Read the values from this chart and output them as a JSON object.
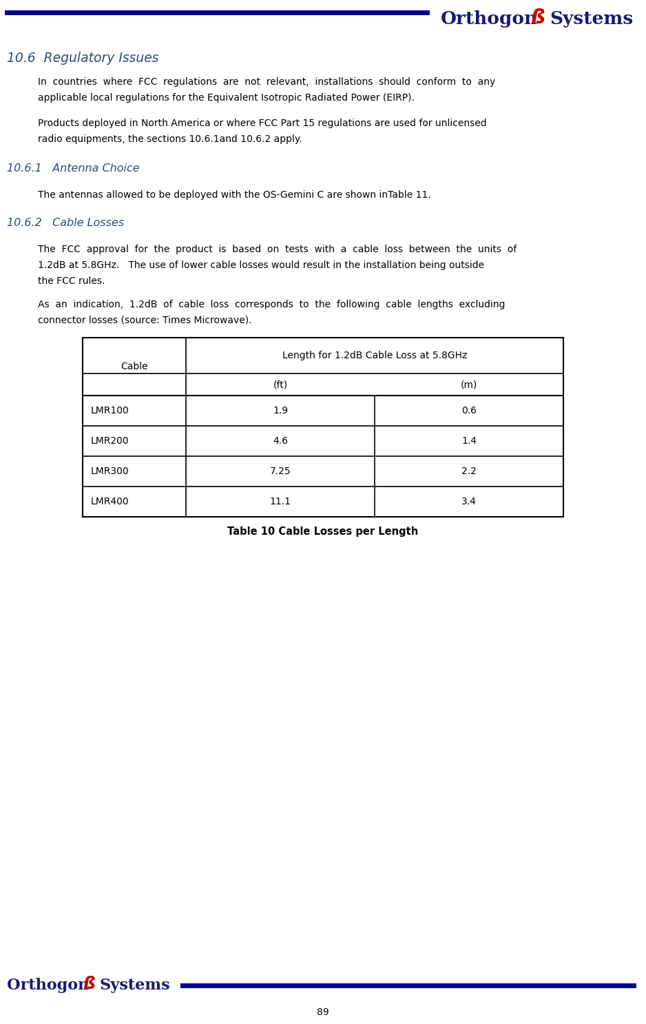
{
  "page_number": "89",
  "header_line_color": "#00008B",
  "section_title": "10.6  Regulatory Issues",
  "section_title_color": "#2E4A7A",
  "subsection1_title": "10.6.1   Antenna Choice",
  "subsection1_title_color": "#2E4A7A",
  "subsection2_title": "10.6.2   Cable Losses",
  "subsection2_title_color": "#2E4A7A",
  "para1_line1": "In  countries  where  FCC  regulations  are  not  relevant,  installations  should  conform  to  any",
  "para1_line2": "applicable local regulations for the Equivalent Isotropic Radiated Power (EIRP).",
  "para2_line1": "Products deployed in North America or where FCC Part 15 regulations are used for unlicensed",
  "para2_line2": "radio equipments, the sections 10.6.1and 10.6.2 apply.",
  "para3": "The antennas allowed to be deployed with the OS-Gemini C are shown inTable 11.",
  "para4_line1": "The  FCC  approval  for  the  product  is  based  on  tests  with  a  cable  loss  between  the  units  of",
  "para4_line2": "1.2dB at 5.8GHz.   The use of lower cable losses would result in the installation being outside",
  "para4_line3": "the FCC rules.",
  "para5_line1": "As  an  indication,  1.2dB  of  cable  loss  corresponds  to  the  following  cable  lengths  excluding",
  "para5_line2": "connector losses (source: Times Microwave).",
  "table_col0_header": "Cable",
  "table_col1_header": "Length for 1.2dB Cable Loss at 5.8GHz",
  "table_col1a_header": "(ft)",
  "table_col1b_header": "(m)",
  "table_rows": [
    [
      "LMR100",
      "1.9",
      "0.6"
    ],
    [
      "LMR200",
      "4.6",
      "1.4"
    ],
    [
      "LMR300",
      "7.25",
      "2.2"
    ],
    [
      "LMR400",
      "11.1",
      "3.4"
    ]
  ],
  "table_caption": "Table 10 Cable Losses per Length",
  "table_border_color": "#000000",
  "footer_line_color": "#00008B",
  "text_color": "#000000",
  "body_font_size": 10.0,
  "section_font_size": 13.5,
  "subsection_font_size": 11.5,
  "logo_orthogon_color": "#1a1a6e",
  "logo_systems_color": "#1a1a6e",
  "logo_swirl_color": "#cc0000"
}
